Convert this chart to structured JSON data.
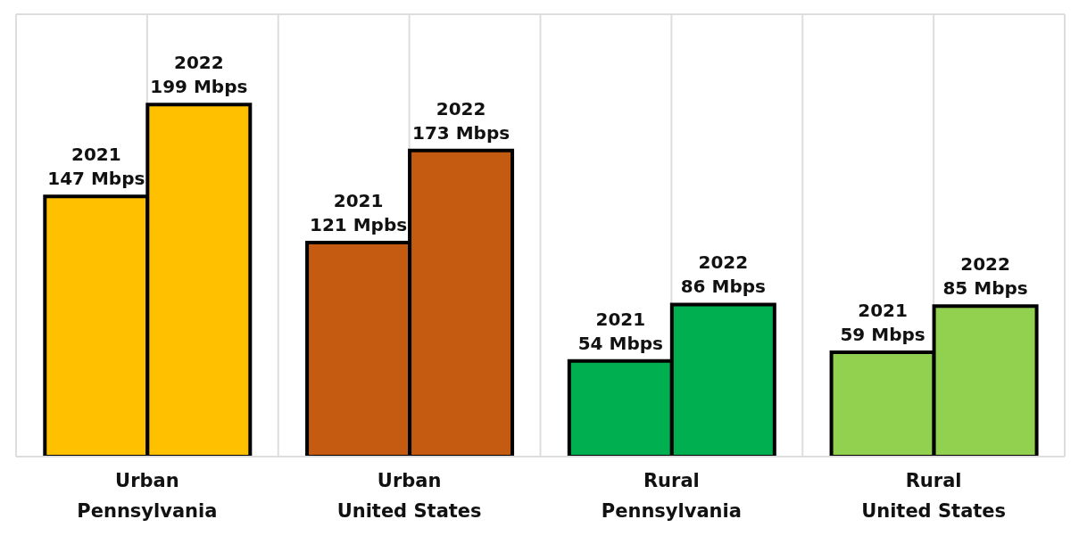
{
  "chart_data": {
    "type": "bar",
    "categories": [
      "Urban Pennsylvania",
      "Urban United States",
      "Rural Pennsylvania",
      "Rural United States"
    ],
    "series": [
      {
        "name": "2021",
        "values": [
          147,
          121,
          54,
          59
        ],
        "colors": [
          "#ffc000",
          "#c55a11",
          "#00b050",
          "#92d050"
        ],
        "value_labels": [
          "147 Mbps",
          "121 Mpbs",
          "54 Mbps",
          "59 Mbps"
        ]
      },
      {
        "name": "2022",
        "values": [
          199,
          173,
          86,
          85
        ],
        "colors": [
          "#ffc000",
          "#c55a11",
          "#00b050",
          "#92d050"
        ],
        "value_labels": [
          "199 Mbps",
          "173 Mbps",
          "86 Mbps",
          "85 Mbps"
        ]
      }
    ],
    "ylim": [
      0,
      250
    ],
    "tick_labels": "x",
    "grid": true
  }
}
